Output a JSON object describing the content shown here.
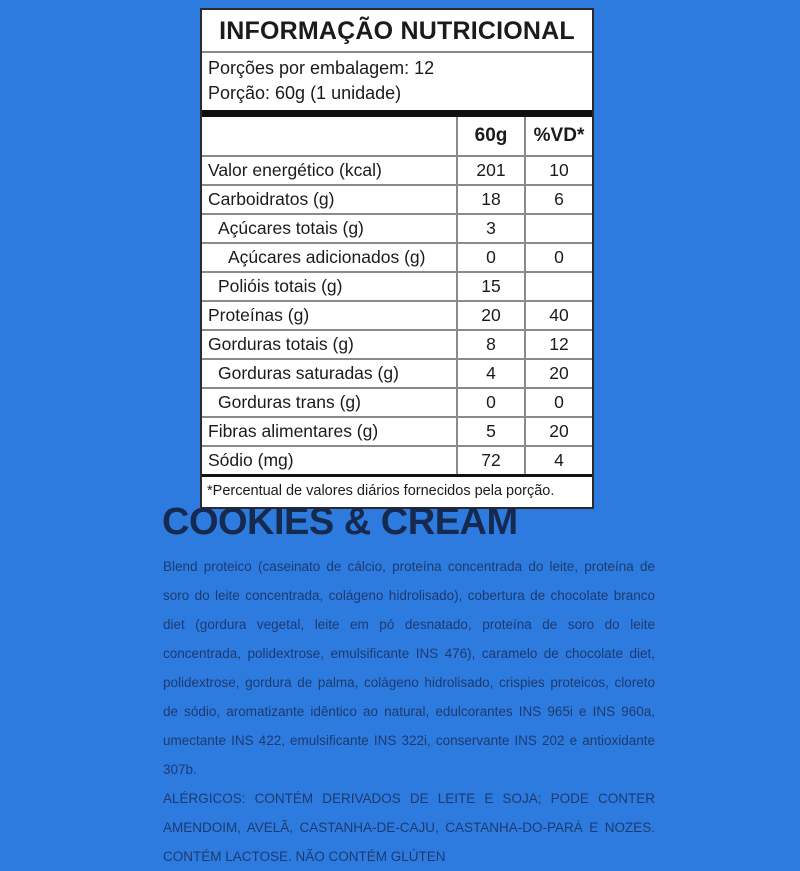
{
  "colors": {
    "background": "#2e7bdf",
    "heading_text": "#16294e",
    "body_text": "#1d3a70",
    "label_background": "#ffffff",
    "label_text": "#1b1b1b"
  },
  "label": {
    "title": "INFORMAÇÃO NUTRICIONAL",
    "servings_line": "Porções por embalagem: 12",
    "portion_line": "Porção: 60g (1 unidade)",
    "table": {
      "col_amount": "60g",
      "col_vd": "%VD*",
      "rows": [
        {
          "name": "Valor energético (kcal)",
          "indent": 0,
          "amount": "201",
          "vd": "10"
        },
        {
          "name": "Carboidratos (g)",
          "indent": 0,
          "amount": "18",
          "vd": "6"
        },
        {
          "name": "Açúcares totais (g)",
          "indent": 1,
          "amount": "3",
          "vd": ""
        },
        {
          "name": "Açúcares adicionados (g)",
          "indent": 2,
          "amount": "0",
          "vd": "0"
        },
        {
          "name": "Polióis totais (g)",
          "indent": 1,
          "amount": "15",
          "vd": ""
        },
        {
          "name": "Proteínas (g)",
          "indent": 0,
          "amount": "20",
          "vd": "40"
        },
        {
          "name": "Gorduras totais (g)",
          "indent": 0,
          "amount": "8",
          "vd": "12"
        },
        {
          "name": "Gorduras saturadas (g)",
          "indent": 1,
          "amount": "4",
          "vd": "20"
        },
        {
          "name": "Gorduras trans (g)",
          "indent": 1,
          "amount": "0",
          "vd": "0"
        },
        {
          "name": "Fibras alimentares (g)",
          "indent": 0,
          "amount": "5",
          "vd": "20"
        },
        {
          "name": "Sódio (mg)",
          "indent": 0,
          "amount": "72",
          "vd": "4"
        }
      ]
    },
    "footnote": "*Percentual de valores diários fornecidos pela porção."
  },
  "product": {
    "title": "COOKIES & CREAM",
    "ingredients": "Blend proteico (caseinato de cálcio, proteína concentrada do leite, proteína de soro do leite concentrada, colágeno hidrolisado), cobertura de chocolate branco diet (gordura vegetal, leite em pó desnatado, proteína de soro do leite concentrada, polidextrose, emulsificante INS 476), caramelo de chocolate diet, polidextrose, gordura de palma, colágeno hidrolisado, crispies proteicos, cloreto de sódio, aromatizante idêntico ao natural, edulcorantes INS 965i e INS 960a, umectante INS 422, emulsificante INS 322i, conservante INS 202 e antioxidante 307b.",
    "allergens": "ALÉRGICOS: CONTÉM DERIVADOS DE LEITE E SOJA; PODE CONTER AMENDOIM, AVELÃ, CASTANHA-DE-CAJU, CASTANHA-DO-PARÁ E NOZES. CONTÉM LACTOSE. NÃO CONTÉM GLÚTEN"
  }
}
